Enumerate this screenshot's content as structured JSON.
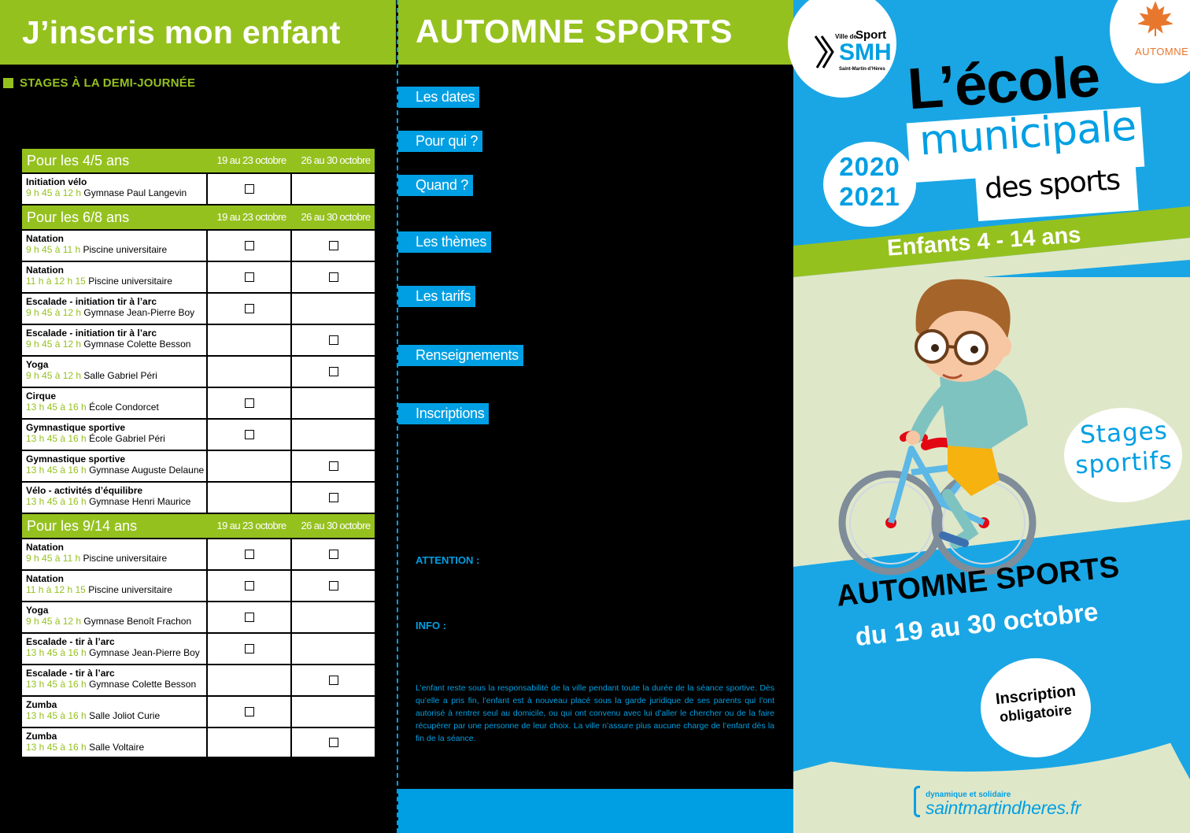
{
  "left": {
    "title": "J’inscris mon enfant",
    "subheading": "STAGES À LA DEMI-JOURNÉE",
    "groups": [
      {
        "age": "Pour les 4/5 ans",
        "date1": "19 au 23 octobre",
        "date2": "26 au 30 octobre",
        "rows": [
          {
            "name": "Initiation vélo",
            "hours": "9 h 45 à 12 h",
            "place": "Gymnase Paul Langevin",
            "w1": true,
            "w2": false
          }
        ]
      },
      {
        "age": "Pour les 6/8 ans",
        "date1": "19 au 23 octobre",
        "date2": "26 au 30 octobre",
        "rows": [
          {
            "name": "Natation",
            "hours": "9 h 45 à 11 h",
            "place": "Piscine universitaire",
            "w1": true,
            "w2": true
          },
          {
            "name": "Natation",
            "hours": "11 h à 12 h 15",
            "place": "Piscine universitaire",
            "w1": true,
            "w2": true
          },
          {
            "name": "Escalade - initiation tir à l’arc",
            "hours": "9 h 45 à 12 h",
            "place": "Gymnase Jean-Pierre Boy",
            "w1": true,
            "w2": false
          },
          {
            "name": "Escalade - initiation tir à l’arc",
            "hours": "9 h 45 à 12 h",
            "place": "Gymnase Colette Besson",
            "w1": false,
            "w2": true
          },
          {
            "name": "Yoga",
            "hours": "9 h 45 à 12 h",
            "place": "Salle Gabriel Péri",
            "w1": false,
            "w2": true
          },
          {
            "name": "Cirque",
            "hours": "13 h 45 à 16 h",
            "place": "École Condorcet",
            "w1": true,
            "w2": false
          },
          {
            "name": "Gymnastique sportive",
            "hours": "13 h 45 à 16 h",
            "place": "École Gabriel Péri",
            "w1": true,
            "w2": false
          },
          {
            "name": "Gymnastique sportive",
            "hours": "13 h 45 à 16 h",
            "place": "Gymnase Auguste Delaune",
            "w1": false,
            "w2": true
          },
          {
            "name": "Vélo - activités d’équilibre",
            "hours": "13 h 45 à 16 h",
            "place": "Gymnase Henri Maurice",
            "w1": false,
            "w2": true
          }
        ]
      },
      {
        "age": "Pour les 9/14 ans",
        "date1": "19 au 23 octobre",
        "date2": "26 au 30 octobre",
        "rows": [
          {
            "name": "Natation",
            "hours": "9 h 45 à 11 h",
            "place": "Piscine universitaire",
            "w1": true,
            "w2": true
          },
          {
            "name": "Natation",
            "hours": "11 h à 12 h 15",
            "place": "Piscine universitaire",
            "w1": true,
            "w2": true
          },
          {
            "name": "Yoga",
            "hours": "9 h 45 à 12 h",
            "place": "Gymnase Benoît Frachon",
            "w1": true,
            "w2": false
          },
          {
            "name": "Escalade - tir à l’arc",
            "hours": "13 h 45 à 16 h",
            "place": "Gymnase Jean-Pierre Boy",
            "w1": true,
            "w2": false
          },
          {
            "name": "Escalade - tir à l’arc",
            "hours": "13 h 45 à 16 h",
            "place": "Gymnase Colette Besson",
            "w1": false,
            "w2": true
          },
          {
            "name": "Zumba",
            "hours": "13 h 45 à 16 h",
            "place": "Salle Joliot Curie",
            "w1": true,
            "w2": false
          },
          {
            "name": "Zumba",
            "hours": "13 h 45 à 16 h",
            "place": "Salle Voltaire",
            "w1": false,
            "w2": true
          }
        ]
      }
    ]
  },
  "middle": {
    "title": "AUTOMNE SPORTS",
    "labels": [
      "Les dates",
      "Pour qui ?",
      "Quand ?",
      "Les thèmes",
      "Les tarifs",
      "Renseignements",
      "Inscriptions"
    ],
    "attention": "ATTENTION :",
    "info": "INFO :",
    "disclaimer": "L’enfant reste sous la responsabilité de la ville pendant toute la durée de la séance sportive. Dès qu’elle a pris fin, l’enfant est à nouveau placé sous la garde juridique de ses parents qui l’ont autorisé à rentrer seul au domicile, ou qui ont convenu avec lui d’aller le chercher ou de la faire récupérer par une personne de leur choix. La ville n’assure plus aucune charge de l’enfant dès la fin de la séance."
  },
  "cover": {
    "logo_small": "Ville de",
    "logo_sport": "Sport",
    "logo_smh": "SMH",
    "logo_city": "Saint-Martin-d’Hères",
    "season": "AUTOMNE",
    "title_line1": "L’école",
    "title_line2": "municipale",
    "title_line3": "des sports",
    "year1": "2020",
    "year2": "2021",
    "audience": "Enfants 4 - 14 ans",
    "bubble_line1": "Stages",
    "bubble_line2": "sportifs",
    "event_title": "AUTOMNE SPORTS",
    "event_dates": "du 19 au 30 octobre",
    "inscription_line1": "Inscription",
    "inscription_line2": "obligatoire",
    "site_tagline": "dynamique et solidaire",
    "site_url": "saintmartindheres.fr"
  },
  "colors": {
    "green": "#95c11f",
    "blue": "#009fe3",
    "cream": "#dfe7c9"
  }
}
